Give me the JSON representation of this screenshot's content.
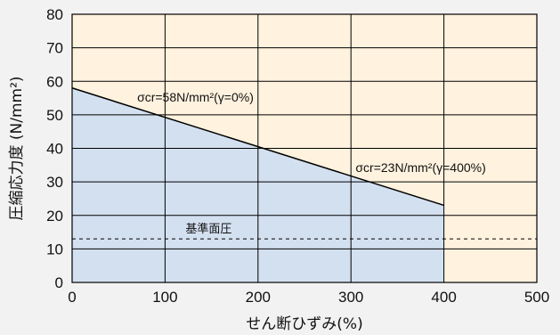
{
  "chart_data": {
    "type": "line",
    "xlabel": "せん断ひずみ(%)",
    "ylabel": "圧縮応力度 (N/mm²)",
    "xlim": [
      0,
      500
    ],
    "ylim": [
      0,
      80
    ],
    "x_ticks": [
      "0",
      "100",
      "200",
      "300",
      "400",
      "500"
    ],
    "y_ticks": [
      "0",
      "10",
      "20",
      "30",
      "40",
      "50",
      "60",
      "70",
      "80"
    ],
    "grid": true,
    "background_color": "#fff2de",
    "fill_color": "#d3e0f0",
    "line_color": "#000000",
    "series": [
      {
        "x": [
          0,
          400
        ],
        "y": [
          58,
          23
        ]
      }
    ],
    "reference_line": {
      "y": 13,
      "label": "基準面圧",
      "style": "dashed"
    },
    "annotations": [
      {
        "text": "σcr=58N/mm²(γ=0%)",
        "x": 70,
        "y": 54
      },
      {
        "text": "σcr=23N/mm²(γ=400%)",
        "x": 305,
        "y": 33
      }
    ]
  }
}
